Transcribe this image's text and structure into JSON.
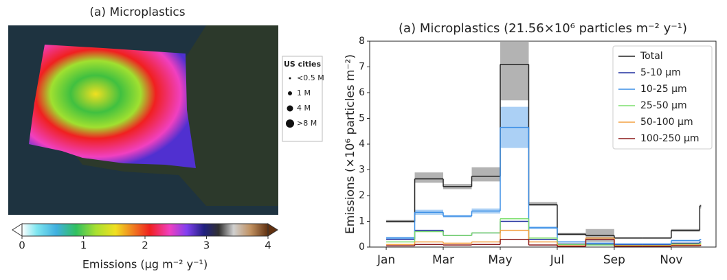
{
  "chart_data": [
    {
      "type": "map",
      "title": "(a) Microplastics",
      "colorbar": {
        "label": "Emissions (μg m⁻² y⁻¹)",
        "lim": [
          0,
          4
        ],
        "ticks": [
          0,
          1,
          2,
          3,
          4
        ]
      },
      "legend": {
        "title": "US cities",
        "entries": [
          "<0.5 M",
          "1 M",
          "4 M",
          ">8 M"
        ]
      }
    },
    {
      "type": "step",
      "title": "(a) Microplastics (21.56×10⁶ particles m⁻² y⁻¹)",
      "ylabel": "Emissions (×10⁶ particles m⁻²)",
      "x": [
        0,
        1,
        2,
        3,
        4,
        5,
        6,
        7,
        8,
        9,
        10,
        11
      ],
      "xlim": [
        -0.58,
        11.57
      ],
      "xticks": [
        {
          "value": 0,
          "label": "Jan"
        },
        {
          "value": 2,
          "label": "Mar"
        },
        {
          "value": 4,
          "label": "May"
        },
        {
          "value": 6,
          "label": "Jul"
        },
        {
          "value": 8,
          "label": "Sep"
        },
        {
          "value": 10,
          "label": "Nov"
        }
      ],
      "ylim": [
        0,
        8
      ],
      "yticks": [
        0,
        1,
        2,
        3,
        4,
        5,
        6,
        7,
        8
      ],
      "legend": "upper right",
      "series": [
        {
          "name": "Total",
          "color": "#222222",
          "values": [
            1.0,
            2.65,
            2.35,
            2.75,
            7.1,
            1.65,
            0.5,
            0.45,
            0.35,
            0.35,
            0.65,
            1.6
          ],
          "band": {
            "color": "#999999",
            "lower": [
              0.95,
              2.5,
              2.25,
              2.55,
              5.7,
              1.6,
              0.45,
              0.2,
              0.33,
              0.33,
              0.6,
              1.5
            ],
            "upper": [
              1.05,
              2.9,
              2.45,
              3.1,
              8.1,
              1.75,
              0.55,
              0.7,
              0.38,
              0.38,
              0.7,
              1.65
            ]
          }
        },
        {
          "name": "5-10 μm",
          "color": "#1f2f9e",
          "values": [
            0.3,
            0.65,
            0.45,
            0.55,
            1.0,
            0.3,
            0.12,
            0.1,
            0.08,
            0.08,
            0.15,
            0.2
          ]
        },
        {
          "name": "10-25 μm",
          "color": "#3a8ee6",
          "values": [
            0.35,
            1.35,
            1.2,
            1.4,
            4.65,
            0.75,
            0.2,
            0.15,
            0.12,
            0.12,
            0.25,
            0.3
          ],
          "band": {
            "color": "#8fc0f2",
            "lower": [
              0.3,
              1.25,
              1.15,
              1.3,
              3.85,
              0.7,
              0.18,
              0.13,
              0.1,
              0.1,
              0.22,
              0.28
            ],
            "upper": [
              0.4,
              1.45,
              1.25,
              1.5,
              5.45,
              0.8,
              0.22,
              0.17,
              0.14,
              0.14,
              0.28,
              0.32
            ]
          }
        },
        {
          "name": "25-50 μm",
          "color": "#7ddf6e",
          "values": [
            0.2,
            0.6,
            0.45,
            0.55,
            1.1,
            0.35,
            0.1,
            0.08,
            0.06,
            0.06,
            0.12,
            0.15
          ]
        },
        {
          "name": "50-100 μm",
          "color": "#f4a040",
          "values": [
            0.1,
            0.2,
            0.15,
            0.2,
            0.65,
            0.2,
            0.05,
            0.35,
            0.05,
            0.05,
            0.08,
            0.1
          ]
        },
        {
          "name": "100-250 μm",
          "color": "#8b1a1a",
          "values": [
            0.05,
            0.1,
            0.08,
            0.1,
            0.3,
            0.08,
            0.03,
            0.3,
            0.03,
            0.03,
            0.05,
            0.06
          ]
        }
      ]
    }
  ]
}
